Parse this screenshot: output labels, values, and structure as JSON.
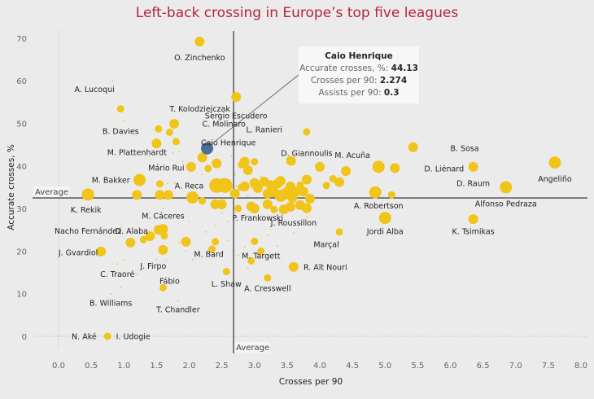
{
  "chart_data": {
    "type": "scatter",
    "title": "Left-back crossing in Europe’s top five leagues",
    "xlabel": "Crosses per 90",
    "ylabel": "Accurate crosses, %",
    "xlim": [
      -0.6,
      8.0
    ],
    "ylim": [
      -4,
      73
    ],
    "xticks": [
      "0.0",
      "0.5",
      "1.0",
      "1.5",
      "2.0",
      "2.5",
      "3.0",
      "3.5",
      "4.0",
      "4.5",
      "5.0",
      "5.5",
      "6.0",
      "6.5",
      "7.0",
      "7.5",
      "8.0"
    ],
    "yticks": [
      "0",
      "10",
      "20",
      "30",
      "40",
      "50",
      "60",
      "70"
    ],
    "average": {
      "x": 2.68,
      "y": 32.5,
      "label": "Average"
    },
    "colors": {
      "point": "#f0c419",
      "highlight": "#4a6f9e",
      "avg_line": "#222222"
    },
    "highlight": {
      "name": "Caio Henrique",
      "x": 2.274,
      "y": 44.13,
      "assists_per_90": 0.3,
      "tooltip": {
        "title": "Caio Henrique",
        "rows": [
          {
            "label": "Accurate crosses, %: ",
            "value": "44.13"
          },
          {
            "label": "Crosses per 90: ",
            "value": "2.274"
          },
          {
            "label": "Assists per 90: ",
            "value": "0.3"
          }
        ]
      }
    },
    "labeled_points": [
      {
        "name": "O. Zinchenko",
        "x": 2.16,
        "y": 69.2,
        "s": 3,
        "lx": 2.16,
        "ly": 65.5
      },
      {
        "name": "A. Lucoqui",
        "x": 0.83,
        "y": 60.0,
        "s": 0,
        "lx": 0.55,
        "ly": 58.0
      },
      {
        "name": "T. Kolodziejczak",
        "x": 0.95,
        "y": 53.4,
        "s": 2,
        "lx": 1.7,
        "ly": 53.4,
        "anchor": "start"
      },
      {
        "name": "Sergio Escudero",
        "x": 2.72,
        "y": 56.2,
        "s": 3,
        "lx": 2.72,
        "ly": 51.8
      },
      {
        "name": "C. Molinaro",
        "x": 1.77,
        "y": 49.9,
        "s": 3,
        "lx": 2.2,
        "ly": 49.9,
        "anchor": "start"
      },
      {
        "name": "B. Davies",
        "x": 1.53,
        "y": 48.7,
        "s": 2,
        "lx": 0.95,
        "ly": 48.2
      },
      {
        "name": "L. Ranieri",
        "x": 3.8,
        "y": 48.0,
        "s": 2,
        "lx": 3.15,
        "ly": 48.6
      },
      {
        "name": "Caio Henrique",
        "x": 2.274,
        "y": 44.13,
        "s": 4,
        "lx": 2.6,
        "ly": 45.5,
        "highlight": true
      },
      {
        "name": "M. Plattenhardt",
        "x": 1.75,
        "y": 43.0,
        "s": 0,
        "lx": 1.2,
        "ly": 43.2
      },
      {
        "name": "B. Sosa",
        "x": 5.43,
        "y": 44.4,
        "s": 3,
        "lx": 6.0,
        "ly": 44.2,
        "anchor": "start"
      },
      {
        "name": "D. Giannoulis",
        "x": 3.56,
        "y": 41.2,
        "s": 3,
        "lx": 3.8,
        "ly": 43.0
      },
      {
        "name": "M. Acuña",
        "x": 4.9,
        "y": 39.8,
        "s": 4,
        "lx": 4.5,
        "ly": 42.5
      },
      {
        "name": "D. Liénard",
        "x": 5.15,
        "y": 39.5,
        "s": 3,
        "lx": 5.6,
        "ly": 39.4,
        "anchor": "start"
      },
      {
        "name": "D. Raum",
        "x": 6.35,
        "y": 39.8,
        "s": 3,
        "lx": 6.35,
        "ly": 35.9
      },
      {
        "name": "Angeliño",
        "x": 7.6,
        "y": 40.8,
        "s": 4,
        "lx": 7.6,
        "ly": 37.0
      },
      {
        "name": "Mário Rui",
        "x": 2.03,
        "y": 39.8,
        "s": 3,
        "lx": 1.65,
        "ly": 39.6
      },
      {
        "name": "M. Bakker",
        "x": 1.24,
        "y": 36.7,
        "s": 4,
        "lx": 0.8,
        "ly": 36.7
      },
      {
        "name": "A. Reca",
        "x": 2.42,
        "y": 35.4,
        "s": 5,
        "lx": 2.0,
        "ly": 35.4
      },
      {
        "name": "Alfonso Pedraza",
        "x": 6.85,
        "y": 35.0,
        "s": 4,
        "lx": 6.85,
        "ly": 31.2
      },
      {
        "name": "A. Robertson",
        "x": 4.85,
        "y": 33.8,
        "s": 4,
        "lx": 4.9,
        "ly": 30.7
      },
      {
        "name": "K. Rekik",
        "x": 0.45,
        "y": 33.3,
        "s": 4,
        "lx": 0.42,
        "ly": 29.7
      },
      {
        "name": "M. Cáceres",
        "x": 2.0,
        "y": 27.0,
        "s": 0,
        "lx": 1.6,
        "ly": 28.3
      },
      {
        "name": "P. Frankowski",
        "x": 2.85,
        "y": 28.5,
        "s": 0,
        "lx": 3.05,
        "ly": 27.8
      },
      {
        "name": "J. Roussillon",
        "x": 3.8,
        "y": 28.0,
        "s": 0,
        "lx": 3.6,
        "ly": 26.7
      },
      {
        "name": "Jordi Alba",
        "x": 5.0,
        "y": 27.8,
        "s": 4,
        "lx": 5.0,
        "ly": 24.7
      },
      {
        "name": "K. Tsimikas",
        "x": 6.35,
        "y": 27.5,
        "s": 3,
        "lx": 6.35,
        "ly": 24.7
      },
      {
        "name": "Nacho Fernández",
        "x": 1.15,
        "y": 24.5,
        "s": 0,
        "lx": 0.45,
        "ly": 24.8
      },
      {
        "name": "D. Alaba",
        "x": 1.53,
        "y": 25.0,
        "s": 3,
        "lx": 1.12,
        "ly": 24.8
      },
      {
        "name": "Marçal",
        "x": 4.3,
        "y": 24.5,
        "s": 2,
        "lx": 4.1,
        "ly": 21.6
      },
      {
        "name": "J. Gvardiol",
        "x": 0.65,
        "y": 19.9,
        "s": 3,
        "lx": 0.3,
        "ly": 19.7
      },
      {
        "name": "M. Bard",
        "x": 2.4,
        "y": 22.2,
        "s": 2,
        "lx": 2.3,
        "ly": 19.3
      },
      {
        "name": "M. Targett",
        "x": 2.95,
        "y": 17.7,
        "s": 2,
        "lx": 3.1,
        "ly": 18.9
      },
      {
        "name": "J. Firpo",
        "x": 1.65,
        "y": 17.8,
        "s": 0,
        "lx": 1.45,
        "ly": 16.5
      },
      {
        "name": "R. Aït Nouri",
        "x": 3.6,
        "y": 16.3,
        "s": 3,
        "lx": 3.75,
        "ly": 16.3,
        "anchor": "start"
      },
      {
        "name": "C. Traoré",
        "x": 0.9,
        "y": 17.0,
        "s": 0,
        "lx": 0.9,
        "ly": 14.6
      },
      {
        "name": "Fábio",
        "x": 1.6,
        "y": 11.4,
        "s": 2,
        "lx": 1.7,
        "ly": 13.0
      },
      {
        "name": "L. Shaw",
        "x": 2.57,
        "y": 15.2,
        "s": 2,
        "lx": 2.57,
        "ly": 12.3
      },
      {
        "name": "A. Cresswell",
        "x": 3.2,
        "y": 13.7,
        "s": 2,
        "lx": 3.2,
        "ly": 11.3
      },
      {
        "name": "B. Williams",
        "x": 0.8,
        "y": 10.0,
        "s": 0,
        "lx": 0.8,
        "ly": 7.8
      },
      {
        "name": "T. Chandler",
        "x": 1.83,
        "y": 8.3,
        "s": 0,
        "lx": 1.83,
        "ly": 6.3
      },
      {
        "name": "N. Aké",
        "x": 0.0,
        "y": 0.0,
        "s": 0,
        "lx": 0.2,
        "ly": 0.0,
        "anchor": "start"
      },
      {
        "name": "I. Udogie",
        "x": 0.75,
        "y": 0.0,
        "s": 2,
        "lx": 0.88,
        "ly": 0.0,
        "anchor": "start"
      }
    ],
    "other_points": [
      [
        1.0,
        50.5,
        0
      ],
      [
        1.7,
        47.9,
        2
      ],
      [
        1.8,
        45.7,
        2
      ],
      [
        1.5,
        45.3,
        3
      ],
      [
        1.85,
        43.5,
        0
      ],
      [
        1.9,
        41.0,
        0
      ],
      [
        2.2,
        42.0,
        3
      ],
      [
        2.42,
        40.6,
        3
      ],
      [
        2.29,
        39.4,
        2
      ],
      [
        2.2,
        38.0,
        0
      ],
      [
        2.05,
        35.0,
        0
      ],
      [
        2.55,
        35.4,
        5
      ],
      [
        2.72,
        35.3,
        0
      ],
      [
        2.5,
        37.0,
        0
      ],
      [
        1.55,
        35.8,
        2
      ],
      [
        1.67,
        35.9,
        0
      ],
      [
        1.78,
        36.0,
        0
      ],
      [
        1.2,
        33.2,
        3
      ],
      [
        1.55,
        33.2,
        3
      ],
      [
        1.68,
        33.2,
        3
      ],
      [
        2.05,
        32.6,
        4
      ],
      [
        2.4,
        31.0,
        3
      ],
      [
        2.5,
        31.0,
        3
      ],
      [
        2.7,
        33.5,
        3
      ],
      [
        2.8,
        35.0,
        2
      ],
      [
        2.85,
        35.2,
        3
      ],
      [
        2.95,
        35.0,
        0
      ],
      [
        2.7,
        38.0,
        0
      ],
      [
        2.85,
        41.0,
        3
      ],
      [
        3.0,
        41.0,
        2
      ],
      [
        2.8,
        40.3,
        2
      ],
      [
        2.65,
        42.3,
        0
      ],
      [
        2.9,
        39.0,
        3
      ],
      [
        3.1,
        37.5,
        0
      ],
      [
        3.15,
        36.3,
        3
      ],
      [
        3.25,
        35.5,
        3
      ],
      [
        3.35,
        35.8,
        3
      ],
      [
        3.4,
        36.5,
        3
      ],
      [
        3.55,
        35.2,
        3
      ],
      [
        3.7,
        35.5,
        2
      ],
      [
        3.8,
        36.8,
        3
      ],
      [
        3.75,
        34.0,
        3
      ],
      [
        3.65,
        34.0,
        3
      ],
      [
        3.5,
        33.6,
        4
      ],
      [
        3.4,
        33.0,
        4
      ],
      [
        3.58,
        32.5,
        3
      ],
      [
        3.85,
        32.3,
        3
      ],
      [
        4.0,
        39.0,
        0
      ],
      [
        4.0,
        39.8,
        3
      ],
      [
        4.4,
        38.8,
        3
      ],
      [
        4.2,
        37.0,
        2
      ],
      [
        4.3,
        36.2,
        3
      ],
      [
        3.0,
        36.0,
        3
      ],
      [
        2.9,
        33.0,
        0
      ],
      [
        3.05,
        34.8,
        3
      ],
      [
        2.75,
        30.0,
        2
      ],
      [
        3.0,
        30.0,
        3
      ],
      [
        3.2,
        31.0,
        3
      ],
      [
        3.3,
        29.8,
        2
      ],
      [
        3.45,
        29.8,
        3
      ],
      [
        3.55,
        30.4,
        3
      ],
      [
        3.7,
        30.8,
        3
      ],
      [
        3.8,
        30.1,
        3
      ],
      [
        4.1,
        35.4,
        2
      ],
      [
        5.1,
        33.2,
        2
      ],
      [
        2.95,
        30.5,
        3
      ],
      [
        2.2,
        31.8,
        2
      ],
      [
        2.5,
        29.0,
        0
      ],
      [
        1.4,
        29.0,
        0
      ],
      [
        1.6,
        30.0,
        0
      ],
      [
        2.6,
        27.0,
        0
      ],
      [
        3.2,
        33.5,
        3
      ],
      [
        3.3,
        33.8,
        3
      ],
      [
        2.4,
        26.0,
        0
      ],
      [
        1.4,
        23.5,
        3
      ],
      [
        1.6,
        25.2,
        3
      ],
      [
        1.62,
        23.6,
        2
      ],
      [
        1.1,
        22.0,
        3
      ],
      [
        1.3,
        22.7,
        2
      ],
      [
        1.6,
        20.3,
        3
      ],
      [
        1.95,
        22.2,
        3
      ],
      [
        1.95,
        20.0,
        0
      ],
      [
        1.5,
        18.0,
        0
      ],
      [
        2.25,
        24.5,
        0
      ],
      [
        2.6,
        22.5,
        0
      ],
      [
        2.35,
        20.5,
        2
      ],
      [
        2.75,
        19.0,
        0
      ],
      [
        2.85,
        21.0,
        0
      ],
      [
        3.1,
        20.0,
        2
      ],
      [
        3.35,
        21.2,
        0
      ],
      [
        2.9,
        16.0,
        0
      ],
      [
        3.0,
        22.3,
        2
      ],
      [
        3.2,
        23.7,
        0
      ],
      [
        3.6,
        24.2,
        0
      ],
      [
        1.2,
        14.5,
        0
      ],
      [
        0.95,
        11.5,
        0
      ],
      [
        1.0,
        18.0,
        0
      ],
      [
        1.85,
        22.0,
        0
      ],
      [
        2.05,
        18.0,
        0
      ],
      [
        0.95,
        25.5,
        0
      ]
    ]
  }
}
